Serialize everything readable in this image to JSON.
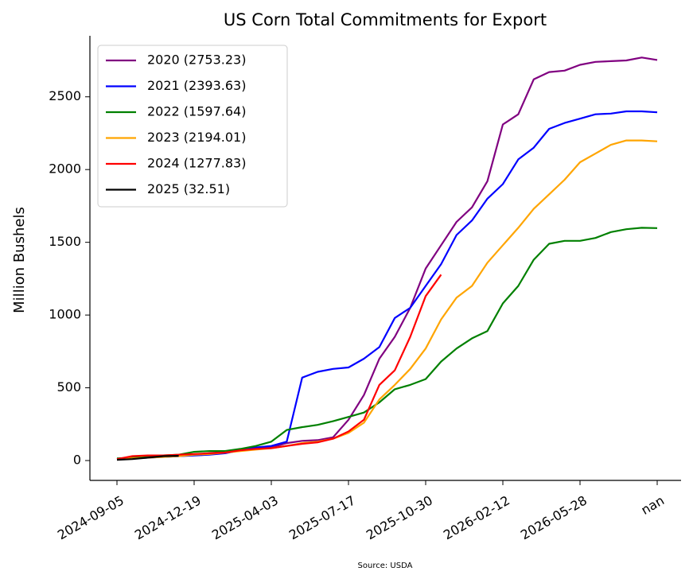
{
  "chart_data": {
    "type": "line",
    "title": "US Corn Total Commitments for Export",
    "ylabel": "Million Bushels",
    "source": "Source: USDA",
    "categories": [
      "2024-09-05",
      null,
      null,
      null,
      null,
      "2024-12-19",
      null,
      null,
      null,
      null,
      "2025-04-03",
      null,
      null,
      null,
      null,
      "2025-07-17",
      null,
      null,
      null,
      null,
      "2025-10-30",
      null,
      null,
      null,
      null,
      "2026-02-12",
      null,
      null,
      null,
      null,
      "2026-05-28",
      null,
      null,
      null,
      null,
      "nan"
    ],
    "ylim": [
      -131,
      2903
    ],
    "yticks": [
      0,
      500,
      1000,
      1500,
      2000,
      2500
    ],
    "legend": "upper left",
    "grid": false,
    "series": [
      {
        "name": "2020 (2753.23)",
        "color": "#800080",
        "values": [
          10,
          20,
          25,
          30,
          35,
          40,
          50,
          60,
          70,
          80,
          90,
          120,
          135,
          140,
          160,
          280,
          450,
          700,
          850,
          1050,
          1320,
          1480,
          1640,
          1740,
          1920,
          2310,
          2380,
          2620,
          2670,
          2680,
          2720,
          2740,
          2745,
          2750,
          2770,
          2753.23
        ]
      },
      {
        "name": "2021 (2393.63)",
        "color": "#0000ff",
        "values": [
          10,
          15,
          20,
          25,
          30,
          35,
          40,
          50,
          70,
          90,
          100,
          130,
          570,
          610,
          630,
          640,
          700,
          780,
          980,
          1050,
          1200,
          1350,
          1550,
          1650,
          1800,
          1900,
          2070,
          2150,
          2280,
          2320,
          2350,
          2380,
          2385,
          2400,
          2400,
          2393.63
        ]
      },
      {
        "name": "2022 (1597.64)",
        "color": "#008000",
        "values": [
          15,
          20,
          30,
          35,
          40,
          60,
          65,
          65,
          80,
          100,
          130,
          210,
          230,
          245,
          270,
          300,
          330,
          400,
          490,
          520,
          560,
          680,
          770,
          840,
          890,
          1080,
          1200,
          1380,
          1490,
          1510,
          1510,
          1530,
          1570,
          1590,
          1600,
          1597.64
        ]
      },
      {
        "name": "2023 (2194.01)",
        "color": "#ffa500",
        "values": [
          10,
          15,
          20,
          25,
          30,
          40,
          45,
          55,
          65,
          75,
          85,
          100,
          120,
          130,
          150,
          190,
          260,
          420,
          520,
          630,
          770,
          970,
          1120,
          1200,
          1360,
          1480,
          1600,
          1730,
          1830,
          1930,
          2050,
          2110,
          2170,
          2200,
          2200,
          2194.01
        ]
      },
      {
        "name": "2024 (1277.83)",
        "color": "#ff0000",
        "values": [
          10,
          30,
          35,
          35,
          40,
          45,
          50,
          55,
          70,
          80,
          85,
          100,
          115,
          125,
          150,
          200,
          280,
          520,
          620,
          850,
          1130,
          1277.83,
          null,
          null,
          null,
          null,
          null,
          null,
          null,
          null,
          null,
          null,
          null,
          null,
          null,
          null
        ]
      },
      {
        "name": "2025 (32.51)",
        "color": "#000000",
        "values": [
          5,
          10,
          20,
          30,
          32.51,
          null,
          null,
          null,
          null,
          null,
          null,
          null,
          null,
          null,
          null,
          null,
          null,
          null,
          null,
          null,
          null,
          null,
          null,
          null,
          null,
          null,
          null,
          null,
          null,
          null,
          null,
          null,
          null,
          null,
          null,
          null
        ]
      }
    ]
  }
}
